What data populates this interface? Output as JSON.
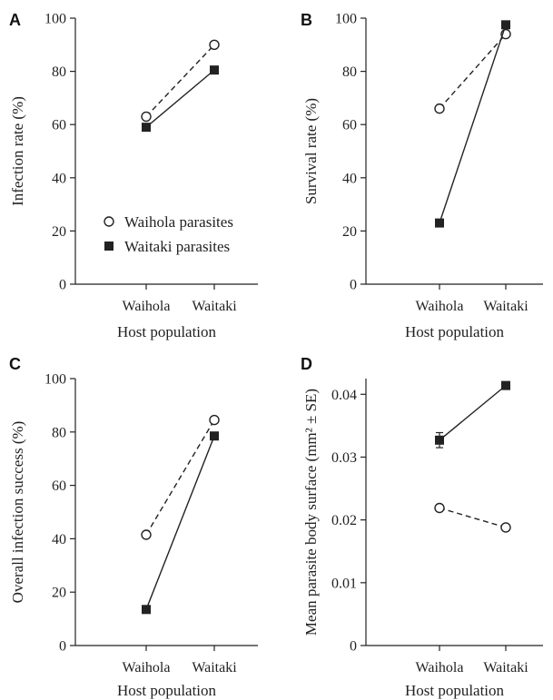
{
  "series_styles": {
    "Waihola parasites": {
      "marker": "open-circle",
      "line": "dashed",
      "color": "#222222"
    },
    "Waitaki parasites": {
      "marker": "filled-square",
      "line": "solid",
      "color": "#222222"
    }
  },
  "legend": [
    "Waihola parasites",
    "Waitaki parasites"
  ],
  "chart_data": [
    {
      "type": "line",
      "panel": "A",
      "categories": [
        "Waihola",
        "Waitaki"
      ],
      "xlabel": "Host population",
      "ylabel": "Infection rate (%)",
      "ylim": [
        0,
        100
      ],
      "yticks": [
        "0",
        "20",
        "40",
        "60",
        "80",
        "100"
      ],
      "legend_position": "lower-center",
      "series": [
        {
          "name": "Waihola parasites",
          "values": [
            63,
            90
          ]
        },
        {
          "name": "Waitaki parasites",
          "values": [
            59,
            80.5
          ]
        }
      ]
    },
    {
      "type": "line",
      "panel": "B",
      "categories": [
        "Waihola",
        "Waitaki"
      ],
      "xlabel": "Host population",
      "ylabel": "Survival rate (%)",
      "ylim": [
        0,
        100
      ],
      "yticks": [
        "0",
        "20",
        "40",
        "60",
        "80",
        "100"
      ],
      "series": [
        {
          "name": "Waihola parasites",
          "values": [
            66,
            94
          ]
        },
        {
          "name": "Waitaki parasites",
          "values": [
            23,
            97.5
          ]
        }
      ]
    },
    {
      "type": "line",
      "panel": "C",
      "categories": [
        "Waihola",
        "Waitaki"
      ],
      "xlabel": "Host population",
      "ylabel": "Overall infection success (%)",
      "ylim": [
        0,
        100
      ],
      "yticks": [
        "0",
        "20",
        "40",
        "60",
        "80",
        "100"
      ],
      "series": [
        {
          "name": "Waihola parasites",
          "values": [
            41.5,
            84.5
          ]
        },
        {
          "name": "Waitaki parasites",
          "values": [
            13.5,
            78.5
          ]
        }
      ]
    },
    {
      "type": "line",
      "panel": "D",
      "categories": [
        "Waihola",
        "Waitaki"
      ],
      "xlabel": "Host population",
      "ylabel": "Mean parasite body surface (mm² ± SE)",
      "ylim": [
        0,
        0.0425
      ],
      "yticks": [
        "0",
        "0.01",
        "0.02",
        "0.03",
        "0.04"
      ],
      "series": [
        {
          "name": "Waihola parasites",
          "values": [
            0.0219,
            0.0188
          ],
          "se": [
            0.0003,
            0.0002
          ]
        },
        {
          "name": "Waitaki parasites",
          "values": [
            0.0327,
            0.0414
          ],
          "se": [
            0.0012,
            0.0005
          ]
        }
      ]
    }
  ]
}
